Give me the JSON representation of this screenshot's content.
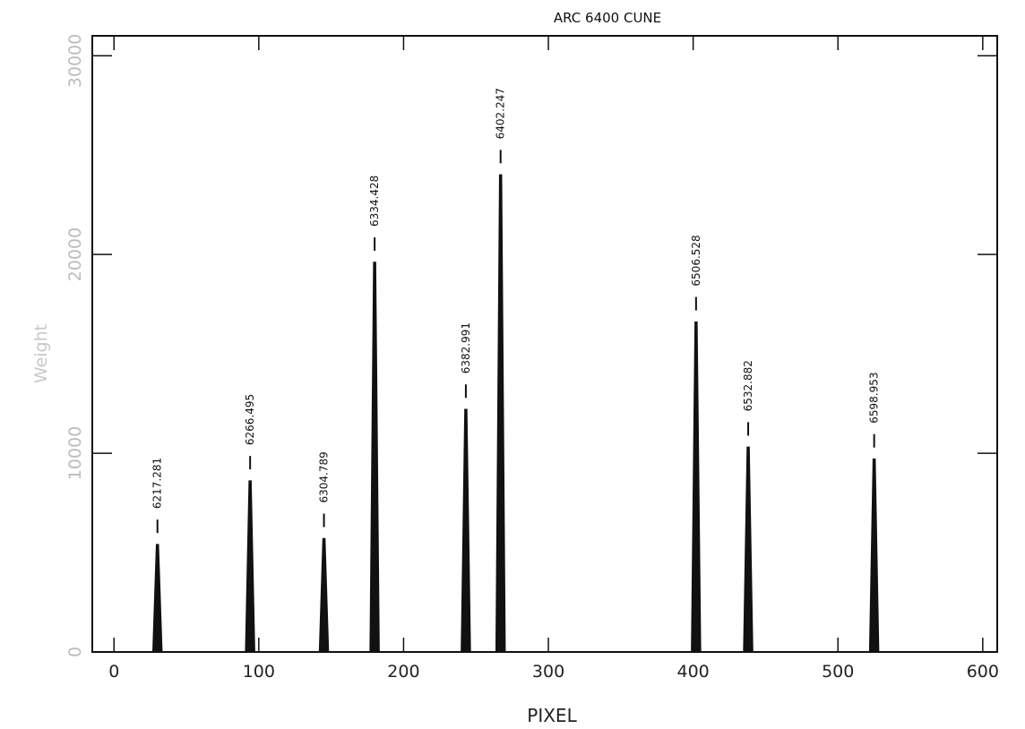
{
  "chart_data": {
    "type": "line",
    "title": "ARC 6400 CUNE",
    "xlabel": "PIXEL",
    "ylabel": "Weight",
    "xlim": [
      -15,
      610
    ],
    "ylim": [
      0,
      31000
    ],
    "x_ticks": [
      0,
      100,
      200,
      300,
      400,
      500,
      600
    ],
    "y_ticks": [
      0,
      10000,
      20000,
      30000
    ],
    "y_tick_labels": [
      "0",
      "10000",
      "20000",
      "30000"
    ],
    "grid": false,
    "series": [
      {
        "lines": [
          {
            "x": 30,
            "height": 5400,
            "label": "6217.281"
          },
          {
            "x": 94,
            "height": 8600,
            "label": "6266.495"
          },
          {
            "x": 145,
            "height": 5700,
            "label": "6304.789"
          },
          {
            "x": 180,
            "height": 19600,
            "label": "6334.428"
          },
          {
            "x": 243,
            "height": 12200,
            "label": "6382.991"
          },
          {
            "x": 267,
            "height": 24000,
            "label": "6402.247"
          },
          {
            "x": 402,
            "height": 16600,
            "label": "6506.528"
          },
          {
            "x": 438,
            "height": 10300,
            "label": "6532.882"
          },
          {
            "x": 525,
            "height": 9700,
            "label": "6598.953"
          }
        ]
      }
    ]
  }
}
